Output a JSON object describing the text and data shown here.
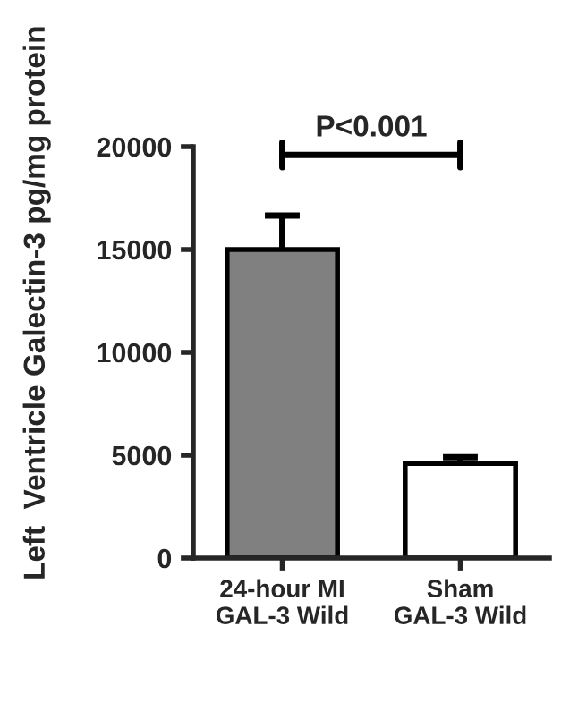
{
  "chart_data": {
    "type": "bar",
    "ylabel": "Left  Ventricle Galectin-3 pg/mg protein",
    "categories": [
      "24-hour MI\nGAL-3 Wild",
      "Sham\nGAL-3 Wild"
    ],
    "values": [
      15000,
      4600
    ],
    "colors": [
      "#808080",
      "#ffffff"
    ],
    "errors": [
      1650,
      300
    ],
    "ylim": [
      0,
      20000
    ],
    "yticks": [
      0,
      5000,
      10000,
      15000,
      20000
    ],
    "annotations": [
      "P<0.001"
    ],
    "grid": false,
    "legend": false
  }
}
